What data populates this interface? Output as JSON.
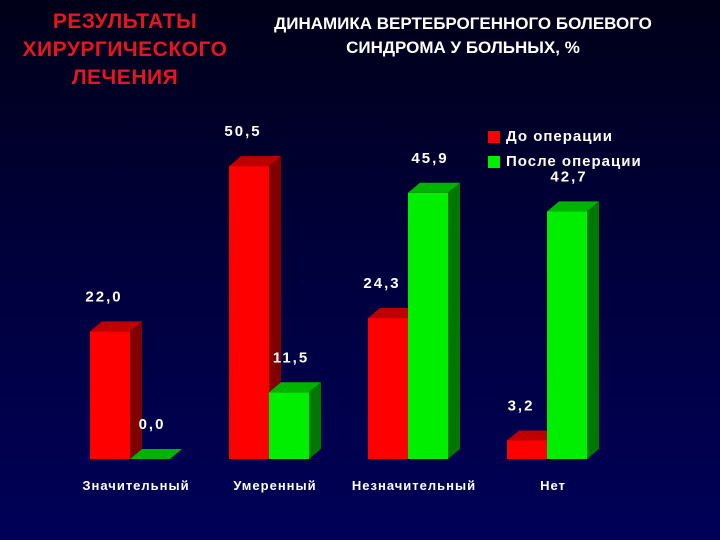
{
  "headline": {
    "left_lines": [
      "РЕЗУЛЬТАТЫ",
      "ХИРУРГИЧЕСКОГО",
      "ЛЕЧЕНИЯ"
    ],
    "right_lines": [
      "ДИНАМИКА ВЕРТЕБРОГЕННОГО БОЛЕВОГО",
      "СИНДРОМА У БОЛЬНЫХ, %"
    ]
  },
  "colors": {
    "before": "#ff0000",
    "after": "#00ee00",
    "title_left": "#e8141e",
    "background": "#000040"
  },
  "chart_data": {
    "type": "bar",
    "style": "3d grouped columns",
    "categories": [
      "Значительный",
      "Умеренный",
      "Незначительный",
      "Нет"
    ],
    "series": [
      {
        "name": "До операции",
        "color": "#ff0000",
        "values": [
          22.0,
          50.5,
          24.3,
          3.2
        ],
        "labels": [
          "22,0",
          "50,5",
          "24,3",
          "3,2"
        ]
      },
      {
        "name": "После операции",
        "color": "#00ee00",
        "values": [
          0.0,
          11.5,
          45.9,
          42.7
        ],
        "labels": [
          "0,0",
          "11,5",
          "45,9",
          "42,7"
        ]
      }
    ],
    "ylim": [
      0,
      55
    ],
    "grid": false,
    "legend_position": "top-right"
  }
}
